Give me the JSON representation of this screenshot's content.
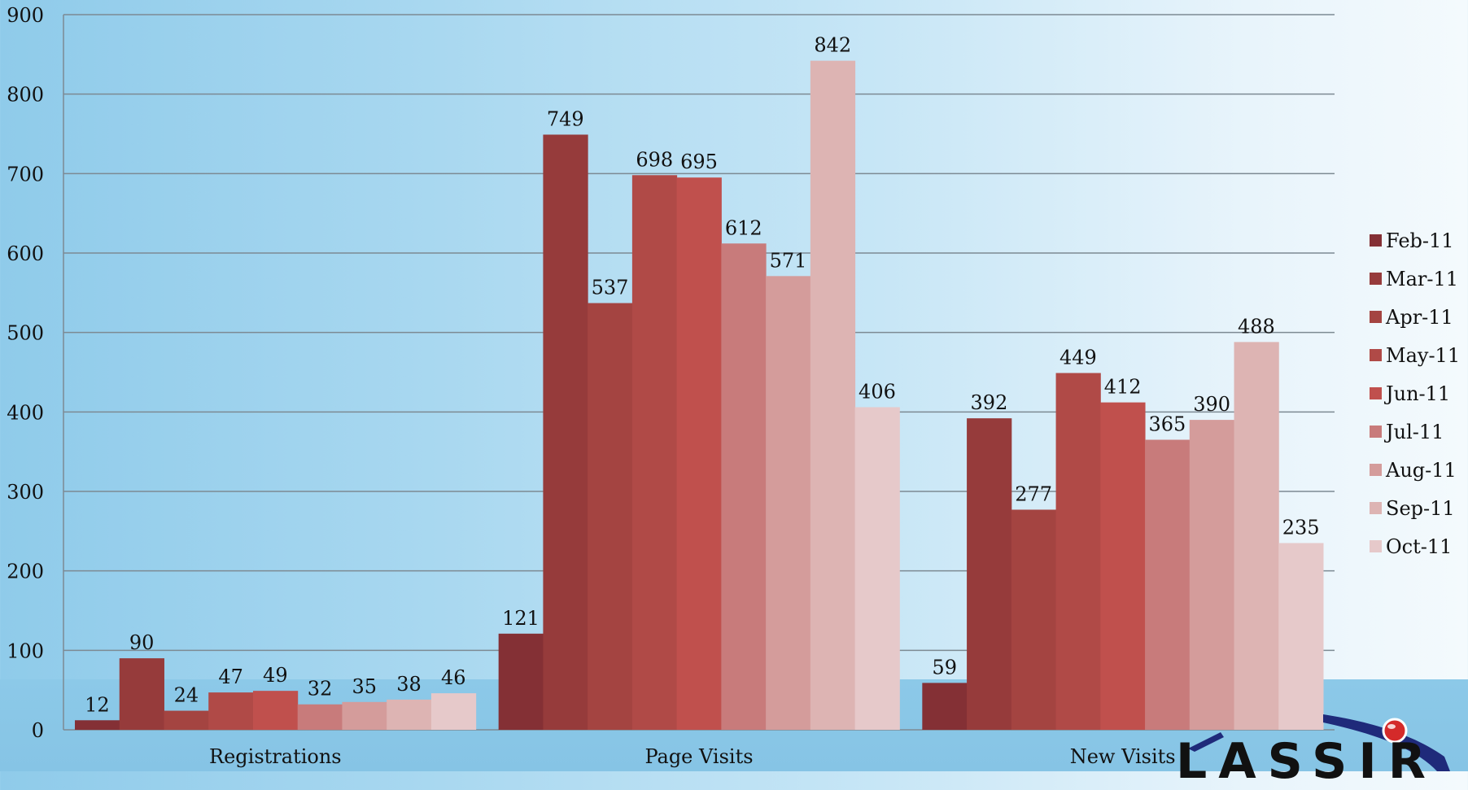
{
  "chart_data": {
    "type": "bar",
    "categories": [
      "Registrations",
      "Page Visits",
      "New Visits"
    ],
    "series": [
      {
        "name": "Feb-11",
        "values": [
          12,
          121,
          59
        ],
        "color": "#843035"
      },
      {
        "name": "Mar-11",
        "values": [
          90,
          749,
          392
        ],
        "color": "#963b3b"
      },
      {
        "name": "Apr-11",
        "values": [
          24,
          537,
          277
        ],
        "color": "#a44441"
      },
      {
        "name": "May-11",
        "values": [
          47,
          698,
          449
        ],
        "color": "#b04a47"
      },
      {
        "name": "Jun-11",
        "values": [
          49,
          695,
          412
        ],
        "color": "#c0504d"
      },
      {
        "name": "Jul-11",
        "values": [
          32,
          612,
          365
        ],
        "color": "#c87b7b"
      },
      {
        "name": "Aug-11",
        "values": [
          35,
          571,
          390
        ],
        "color": "#d49c9b"
      },
      {
        "name": "Sep-11",
        "values": [
          38,
          842,
          488
        ],
        "color": "#ddb4b3"
      },
      {
        "name": "Oct-11",
        "values": [
          46,
          406,
          235
        ],
        "color": "#e6c9ca"
      }
    ],
    "yticks": [
      "0",
      "100",
      "200",
      "300",
      "400",
      "500",
      "600",
      "700",
      "800",
      "900"
    ],
    "ylim": [
      0,
      900
    ],
    "grid": true,
    "legend_position": "right"
  },
  "logo": {
    "text": "LASSIR",
    "accent_color": "#1f2a7a",
    "dot_color": "#d42a2a"
  }
}
